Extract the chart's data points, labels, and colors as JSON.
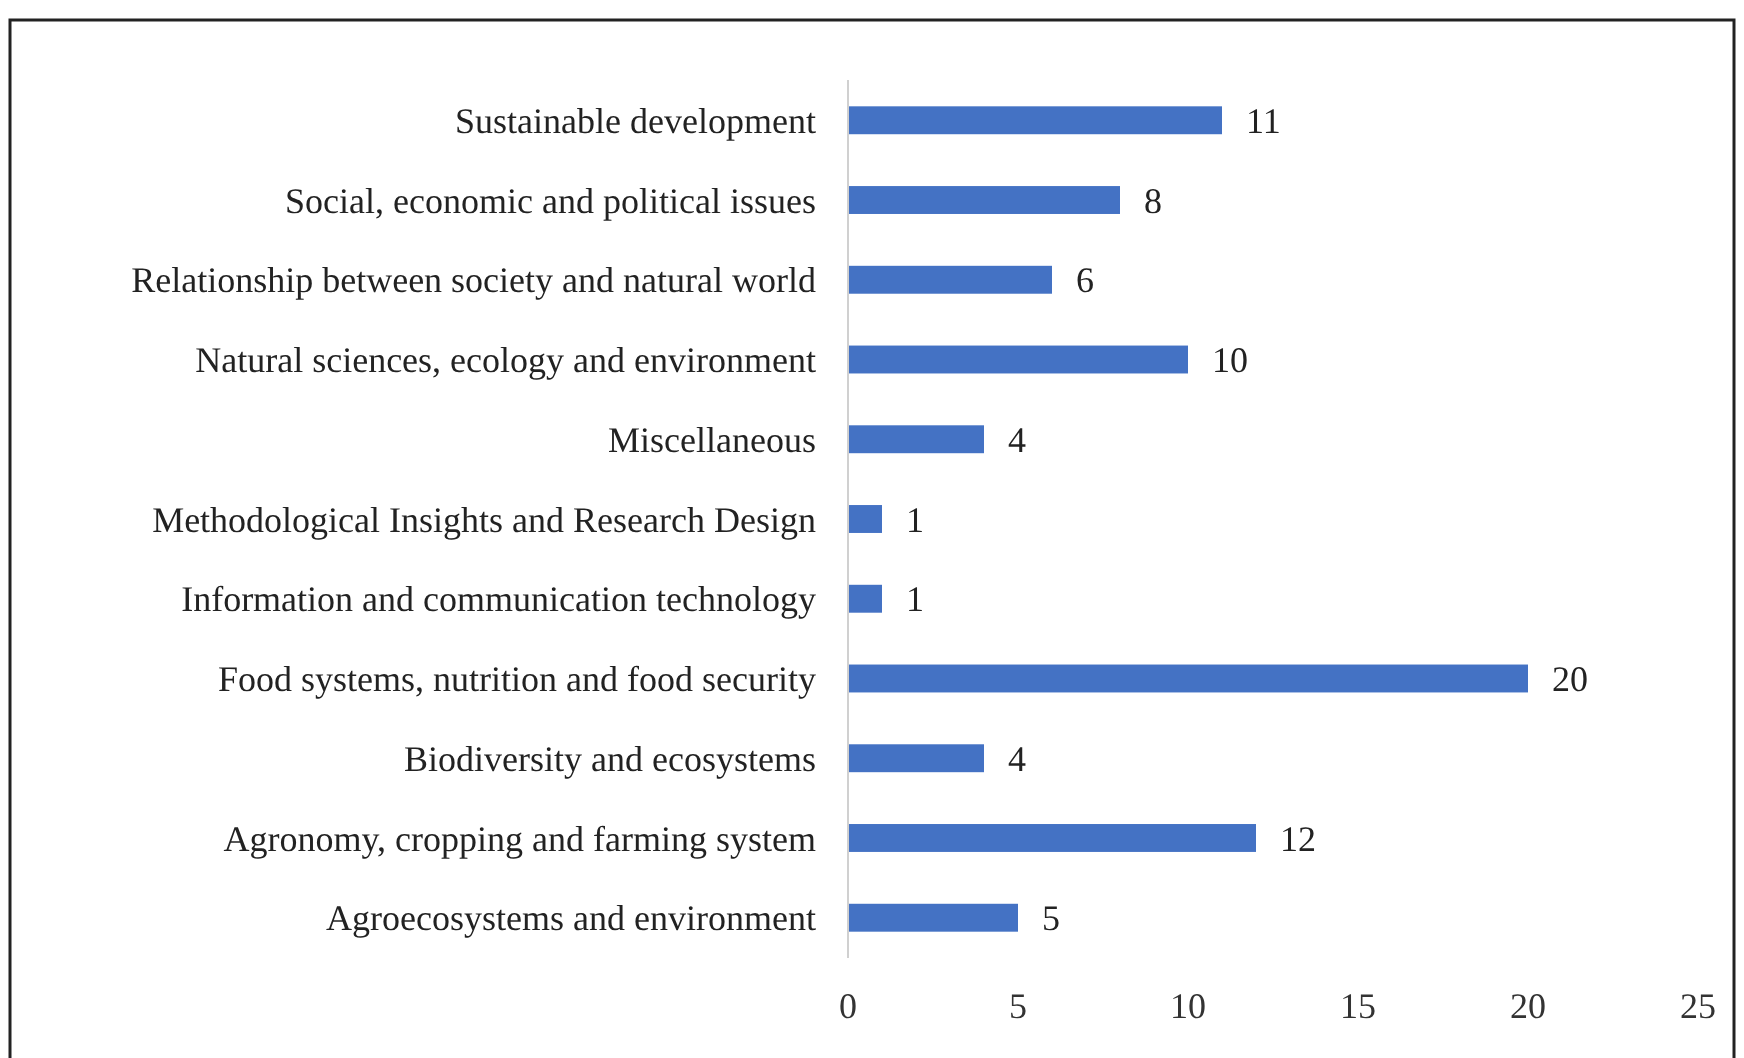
{
  "chart_data": {
    "type": "bar",
    "orientation": "horizontal",
    "categories": [
      "Sustainable development",
      "Social, economic and political issues",
      "Relationship between society and natural world",
      "Natural sciences, ecology and environment",
      "Miscellaneous",
      "Methodological Insights and Research Design",
      "Information and communication technology",
      "Food systems, nutrition and food security",
      "Biodiversity and ecosystems",
      "Agronomy, cropping and farming system",
      "Agroecosystems and environment"
    ],
    "values": [
      11,
      8,
      6,
      10,
      4,
      1,
      1,
      20,
      4,
      12,
      5
    ],
    "color": "#4472c4",
    "xlim": [
      0,
      25
    ],
    "xticks": [
      0,
      5,
      10,
      15,
      20,
      25
    ],
    "grid": false,
    "data_labels": true
  }
}
